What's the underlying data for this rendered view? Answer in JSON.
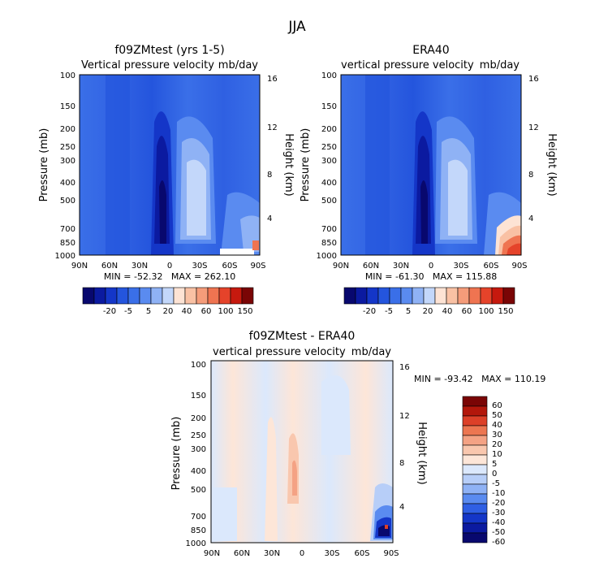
{
  "figure_title": "JJA",
  "colors": {
    "main_scale": [
      "#08086e",
      "#0b1aa0",
      "#1436c8",
      "#2455dd",
      "#3a6fe8",
      "#5a8bf0",
      "#8fb2f5",
      "#c3d7fa",
      "#fde3d4",
      "#f9c1a4",
      "#f59c7a",
      "#ef7451",
      "#e5432a",
      "#c6190e",
      "#7a0505"
    ],
    "diff_scale": [
      "#08086e",
      "#0b1aa0",
      "#1436c8",
      "#2f5fe4",
      "#5a8bf0",
      "#8fb2f5",
      "#b7cef8",
      "#dbe8fc",
      "#fde6d8",
      "#f9c7ae",
      "#f4a284",
      "#ec7651",
      "#dc4028",
      "#b3170b",
      "#7a0505"
    ]
  },
  "chart_data": [
    {
      "type": "heatmap",
      "title": "f09ZMtest (yrs 1-5)",
      "subtitle_left": "Vertical pressure velocity",
      "subtitle_right": "mb/day",
      "ylabel": "Pressure (mb)",
      "ylabel_right": "Height (km)",
      "x_ticks": [
        "90N",
        "60N",
        "30N",
        "0",
        "30S",
        "60S",
        "90S"
      ],
      "y_ticks": [
        "100",
        "150",
        "200",
        "250",
        "300",
        "400",
        "500",
        "700",
        "850",
        "1000"
      ],
      "y_ticks_right": [
        "16",
        "12",
        "8",
        "4"
      ],
      "stats": "MIN = -52.32   MAX = 262.10",
      "colorbar_labels": [
        "-20",
        "-5",
        "5",
        "20",
        "40",
        "60",
        "100",
        "150"
      ]
    },
    {
      "type": "heatmap",
      "title": "ERA40",
      "subtitle_left": "vertical pressure velocity",
      "subtitle_right": "mb/day",
      "ylabel": "Pressure (mb)",
      "ylabel_right": "Height (km)",
      "x_ticks": [
        "90N",
        "60N",
        "30N",
        "0",
        "30S",
        "60S",
        "90S"
      ],
      "y_ticks": [
        "100",
        "150",
        "200",
        "250",
        "300",
        "400",
        "500",
        "700",
        "850",
        "1000"
      ],
      "y_ticks_right": [
        "16",
        "12",
        "8",
        "4"
      ],
      "stats": "MIN = -61.30   MAX = 115.88",
      "colorbar_labels": [
        "-20",
        "-5",
        "5",
        "20",
        "40",
        "60",
        "100",
        "150"
      ]
    },
    {
      "type": "heatmap",
      "title": "f09ZMtest - ERA40",
      "subtitle_left": "vertical pressure velocity",
      "subtitle_right": "mb/day",
      "ylabel": "Pressure (mb)",
      "ylabel_right": "Height (km)",
      "x_ticks": [
        "90N",
        "60N",
        "30N",
        "0",
        "30S",
        "60S",
        "90S"
      ],
      "y_ticks": [
        "100",
        "150",
        "200",
        "250",
        "300",
        "400",
        "500",
        "700",
        "850",
        "1000"
      ],
      "y_ticks_right": [
        "16",
        "12",
        "8",
        "4"
      ],
      "stats": "MIN = -93.42   MAX = 110.19",
      "colorbar_labels": [
        "60",
        "50",
        "40",
        "30",
        "20",
        "10",
        "5",
        "0",
        "-5",
        "-10",
        "-20",
        "-30",
        "-40",
        "-50",
        "-60"
      ]
    }
  ]
}
